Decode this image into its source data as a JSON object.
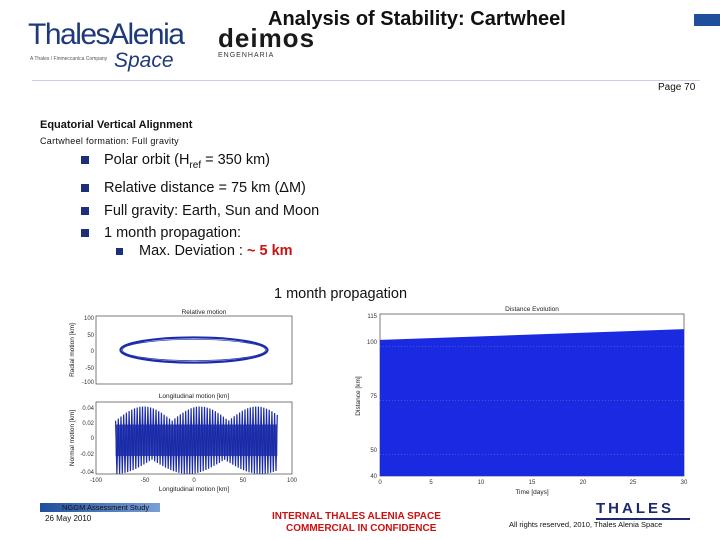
{
  "header": {
    "logo_text": "ThalesAlenia",
    "logo_space": "Space",
    "logo_tagline": "A Thales / Finmeccanica Company",
    "deimos_text": "deimos",
    "deimos_sub": "ENGENHARIA",
    "title": "Analysis of Stability: Cartwheel",
    "page": "Page 70"
  },
  "section": {
    "title": "Equatorial Vertical Alignment",
    "subtitle": "Cartwheel formation: Full gravity"
  },
  "bullets": [
    {
      "pre": "Polar orbit (H",
      "sub": "ref",
      "post": " =  350 km)"
    },
    {
      "text": "Relative distance = 75 km (ΔM)"
    },
    {
      "text": "Full gravity: Earth, Sun and Moon"
    },
    {
      "text": "1 month propagation:"
    }
  ],
  "subbullet": {
    "label": "Max. Deviation :  ",
    "value": "~ 5 km"
  },
  "plot_title": "1 month propagation",
  "chart_data": [
    {
      "type": "scatter",
      "title": "Relative motion",
      "xlabel": "Longitudinal motion [km]",
      "ylabel": "Radial motion [km]",
      "xlim": [
        -100,
        100
      ],
      "ylim": [
        -100,
        100
      ],
      "yticks": [
        "100",
        "50",
        "0",
        "-50",
        "-100"
      ],
      "series": [
        {
          "shape": "ellipse",
          "cx": 0,
          "cy": 0,
          "rx": 75,
          "ry": 37
        }
      ],
      "color": "#1a2aa8"
    },
    {
      "type": "scatter",
      "title": "",
      "xlabel": "Longitudinal motion [km]",
      "ylabel": "Normal motion [km]",
      "xlim": [
        -100,
        100
      ],
      "ylim": [
        -0.04,
        0.04
      ],
      "yticks": [
        "0.04",
        "0.02",
        "0",
        "-0.02",
        "-0.04"
      ],
      "xticks": [
        "-100",
        "-50",
        "0",
        "50",
        "100"
      ],
      "series": [
        {
          "x_range": [
            -80,
            85
          ],
          "y_range": [
            -0.04,
            0.035
          ]
        }
      ],
      "color": "#1a2aa8"
    },
    {
      "type": "area",
      "title": "Distance Evolution",
      "xlabel": "Time [days]",
      "ylabel": "Distance [km]",
      "xlim": [
        0,
        30
      ],
      "ylim": [
        40,
        115
      ],
      "yticks": [
        "115",
        "100",
        "75",
        "50",
        "40"
      ],
      "xticks": [
        "0",
        "5",
        "10",
        "15",
        "20",
        "25",
        "30"
      ],
      "series": [
        {
          "upper_start": 103,
          "upper_end": 108,
          "lower": 40
        }
      ],
      "color": "#1a2ae0"
    }
  ],
  "footer": {
    "study": "NGGM Assessment Study",
    "date": "26 May 2010",
    "conf_line1": "INTERNAL THALES ALENIA SPACE",
    "conf_line2": "COMMERCIAL IN CONFIDENCE",
    "rights": "All rights reserved, 2010, Thales Alenia Space",
    "thales": "THALES"
  }
}
